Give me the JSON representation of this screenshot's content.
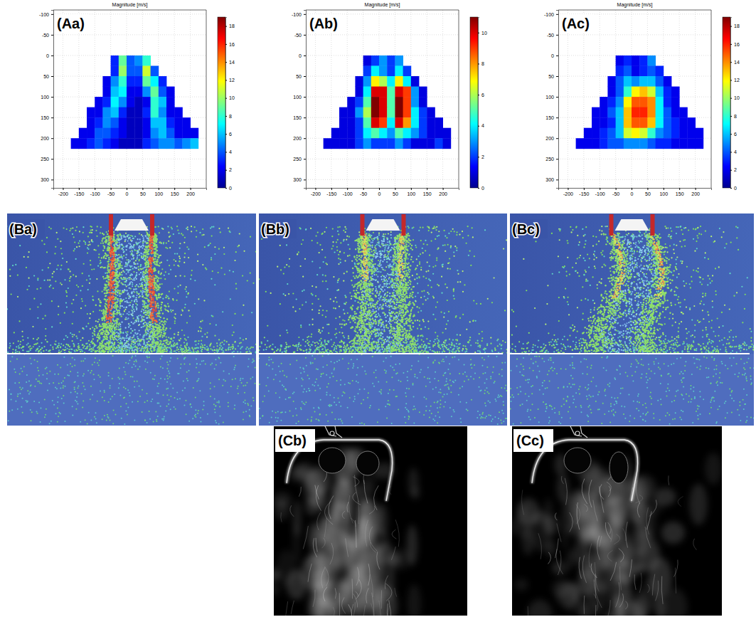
{
  "chart_data": [
    {
      "type": "heatmap",
      "label": "(Aa)",
      "title": "Magnitude [m/s]",
      "x": [
        -162.5,
        -137.5,
        -112.5,
        -87.5,
        -62.5,
        -37.5,
        -12.5,
        12.5,
        37.5,
        62.5,
        87.5,
        112.5,
        137.5,
        162.5,
        187.5,
        212.5,
        237.5
      ],
      "y": [
        12.5,
        37.5,
        62.5,
        87.5,
        112.5,
        137.5,
        162.5,
        187.5,
        212.5
      ],
      "z": [
        [
          null,
          null,
          null,
          null,
          null,
          3,
          9,
          4,
          5,
          8,
          null,
          null,
          null,
          null,
          null,
          null,
          null
        ],
        [
          null,
          null,
          null,
          null,
          null,
          3,
          10,
          4,
          4,
          11,
          4,
          null,
          null,
          null,
          null,
          null,
          null
        ],
        [
          null,
          null,
          null,
          null,
          2,
          5,
          8,
          3,
          3,
          9,
          7,
          3,
          null,
          null,
          null,
          null,
          null
        ],
        [
          null,
          null,
          null,
          null,
          2,
          6,
          7,
          2,
          2,
          5,
          9,
          4,
          2,
          null,
          null,
          null,
          null
        ],
        [
          null,
          null,
          null,
          2,
          3,
          7,
          5,
          2,
          1,
          2,
          8,
          6,
          2,
          null,
          null,
          null,
          null
        ],
        [
          null,
          null,
          2,
          2,
          5,
          6,
          3,
          1,
          1,
          3,
          8,
          5,
          2,
          2,
          null,
          null,
          null
        ],
        [
          null,
          null,
          2,
          3,
          5,
          4,
          2,
          1,
          1,
          2,
          6,
          6,
          3,
          2,
          2,
          null,
          null
        ],
        [
          null,
          2,
          2,
          4,
          4,
          3,
          2,
          1,
          1,
          2,
          5,
          6,
          4,
          2,
          2,
          2,
          null
        ],
        [
          2,
          2,
          3,
          4,
          3,
          2,
          1,
          1,
          1,
          3,
          4,
          5,
          5,
          4,
          5,
          6,
          null
        ]
      ],
      "xlim": [
        -230,
        250
      ],
      "ylim": [
        -110,
        320
      ],
      "xticks": [
        -200,
        -150,
        -100,
        -50,
        0,
        50,
        100,
        150,
        200
      ],
      "yticks": [
        -100,
        -50,
        0,
        50,
        100,
        150,
        200,
        250,
        300
      ],
      "grid": true,
      "colorbar": {
        "range": [
          0,
          19
        ],
        "ticks": [
          0,
          2,
          4,
          6,
          8,
          10,
          12,
          14,
          16,
          18
        ]
      }
    },
    {
      "type": "heatmap",
      "label": "(Ab)",
      "title": "Magnitude [m/s]",
      "x": [
        -162.5,
        -137.5,
        -112.5,
        -87.5,
        -62.5,
        -37.5,
        -12.5,
        12.5,
        37.5,
        62.5,
        87.5,
        112.5,
        137.5,
        162.5,
        187.5,
        212.5,
        237.5
      ],
      "y": [
        12.5,
        37.5,
        62.5,
        87.5,
        112.5,
        137.5,
        162.5,
        187.5,
        212.5
      ],
      "z": [
        [
          null,
          null,
          null,
          null,
          null,
          1,
          2,
          3,
          2,
          3,
          null,
          null,
          null,
          null,
          null,
          null,
          null
        ],
        [
          null,
          null,
          null,
          null,
          null,
          2,
          4,
          3,
          2,
          4,
          2,
          null,
          null,
          null,
          null,
          null,
          null
        ],
        [
          null,
          null,
          null,
          null,
          1,
          3,
          7,
          6,
          4,
          7,
          4,
          1,
          null,
          null,
          null,
          null,
          null
        ],
        [
          null,
          null,
          null,
          null,
          1,
          4,
          10,
          10,
          5,
          10,
          9,
          3,
          1,
          null,
          null,
          null,
          null
        ],
        [
          null,
          null,
          null,
          1,
          2,
          5,
          11,
          10,
          5,
          11,
          9,
          3,
          1,
          null,
          null,
          null,
          null
        ],
        [
          null,
          null,
          1,
          1,
          3,
          6,
          11,
          10,
          5,
          11,
          9,
          4,
          2,
          1,
          null,
          null,
          null
        ],
        [
          null,
          null,
          1,
          1,
          2,
          5,
          10,
          9,
          4,
          10,
          8,
          4,
          2,
          1,
          1,
          null,
          null
        ],
        [
          null,
          1,
          1,
          1,
          2,
          4,
          5,
          4,
          3,
          5,
          4,
          3,
          2,
          1,
          1,
          1,
          null
        ],
        [
          1,
          1,
          1,
          1,
          2,
          3,
          2,
          2,
          2,
          3,
          2,
          1,
          1,
          1,
          2,
          1,
          null
        ]
      ],
      "xlim": [
        -230,
        250
      ],
      "ylim": [
        -110,
        320
      ],
      "xticks": [
        -200,
        -150,
        -100,
        -50,
        0,
        50,
        100,
        150,
        200
      ],
      "yticks": [
        -100,
        -50,
        0,
        50,
        100,
        150,
        200,
        250,
        300
      ],
      "grid": true,
      "colorbar": {
        "range": [
          0,
          11
        ],
        "ticks": [
          0,
          2,
          4,
          6,
          8,
          10
        ]
      }
    },
    {
      "type": "heatmap",
      "label": "(Ac)",
      "title": "Magnitude [m/s]",
      "x": [
        -162.5,
        -137.5,
        -112.5,
        -87.5,
        -62.5,
        -37.5,
        -12.5,
        12.5,
        37.5,
        62.5,
        87.5,
        112.5,
        137.5,
        162.5,
        187.5,
        212.5,
        237.5
      ],
      "y": [
        12.5,
        37.5,
        62.5,
        87.5,
        112.5,
        137.5,
        162.5,
        187.5,
        212.5
      ],
      "z": [
        [
          null,
          null,
          null,
          null,
          null,
          2,
          3,
          2,
          3,
          5,
          null,
          null,
          null,
          null,
          null,
          null,
          null
        ],
        [
          null,
          null,
          null,
          null,
          null,
          3,
          4,
          2,
          3,
          4,
          3,
          null,
          null,
          null,
          null,
          null,
          null
        ],
        [
          null,
          null,
          null,
          null,
          2,
          4,
          6,
          5,
          6,
          6,
          4,
          2,
          null,
          null,
          null,
          null,
          null
        ],
        [
          null,
          null,
          null,
          null,
          2,
          4,
          8,
          12,
          13,
          11,
          6,
          3,
          2,
          null,
          null,
          null,
          null
        ],
        [
          null,
          null,
          null,
          2,
          3,
          5,
          12,
          15,
          15,
          14,
          7,
          3,
          2,
          null,
          null,
          null,
          null
        ],
        [
          null,
          null,
          2,
          2,
          4,
          6,
          13,
          16,
          16,
          14,
          7,
          4,
          2,
          2,
          null,
          null,
          null
        ],
        [
          null,
          null,
          2,
          2,
          3,
          6,
          13,
          15,
          15,
          13,
          7,
          4,
          3,
          2,
          2,
          null,
          null
        ],
        [
          null,
          2,
          2,
          3,
          4,
          6,
          11,
          12,
          11,
          8,
          5,
          4,
          3,
          2,
          2,
          2,
          null
        ],
        [
          2,
          2,
          2,
          3,
          4,
          4,
          5,
          5,
          5,
          4,
          3,
          3,
          2,
          2,
          2,
          2,
          null
        ]
      ],
      "xlim": [
        -230,
        250
      ],
      "ylim": [
        -110,
        320
      ],
      "xticks": [
        -200,
        -150,
        -100,
        -50,
        0,
        50,
        100,
        150,
        200
      ],
      "yticks": [
        -100,
        -50,
        0,
        50,
        100,
        150,
        200,
        250,
        300
      ],
      "grid": true,
      "colorbar": {
        "range": [
          0,
          19
        ],
        "ticks": [
          0,
          2,
          4,
          6,
          8,
          10,
          12,
          14,
          16,
          18
        ]
      }
    }
  ],
  "images": [
    {
      "type": "simulation",
      "label": "(Ba)"
    },
    {
      "type": "simulation",
      "label": "(Bb)"
    },
    {
      "type": "simulation",
      "label": "(Bc)"
    },
    {
      "type": "photograph",
      "label": "(Cb)"
    },
    {
      "type": "photograph",
      "label": "(Cc)"
    }
  ]
}
